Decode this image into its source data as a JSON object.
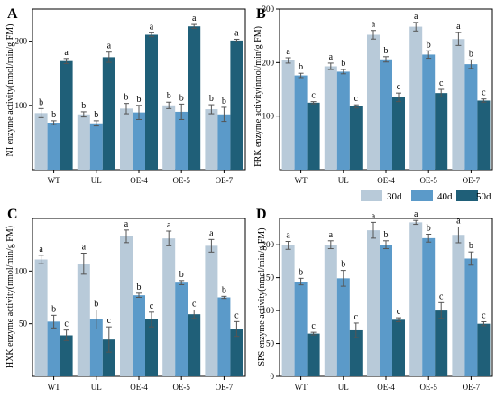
{
  "colors": {
    "30d": "#b8cad9",
    "40d": "#5b9ac9",
    "50d": "#1f5f78",
    "axis": "#000000"
  },
  "legend": {
    "placement": "between-top-right-and-bottom-right-panels",
    "items": [
      {
        "label": "30d",
        "color_key": "30d"
      },
      {
        "label": "40d",
        "color_key": "40d"
      },
      {
        "label": "50d",
        "color_key": "50d"
      }
    ]
  },
  "chart_data": [
    {
      "panel": "A",
      "type": "bar",
      "ylabel": "NI enzyme activity(nmol/min/g FM)",
      "categories": [
        "WT",
        "UL",
        "OE-4",
        "OE-5",
        "OE-7"
      ],
      "ylim": [
        0,
        250
      ],
      "yticks": [
        100,
        200
      ],
      "ytick_labels": [
        "100",
        "200"
      ],
      "series": [
        {
          "name": "30d",
          "values": [
            88,
            86,
            95,
            100,
            94
          ],
          "errors": [
            7,
            4,
            8,
            5,
            7
          ],
          "letters": [
            "b",
            "b",
            "b",
            "b",
            "b"
          ]
        },
        {
          "name": "40d",
          "values": [
            73,
            72,
            89,
            90,
            86
          ],
          "errors": [
            3,
            4,
            11,
            12,
            11
          ],
          "letters": [
            "b",
            "b",
            "b",
            "b",
            "b"
          ]
        },
        {
          "name": "50d",
          "values": [
            169,
            175,
            210,
            223,
            201
          ],
          "errors": [
            4,
            8,
            3,
            3,
            2
          ],
          "letters": [
            "a",
            "a",
            "a",
            "a",
            "a"
          ]
        }
      ]
    },
    {
      "panel": "B",
      "type": "bar",
      "ylabel": "FRK enzyme activity(nmol/min/g FM)",
      "categories": [
        "WT",
        "UL",
        "OE-4",
        "OE-5",
        "OE-7"
      ],
      "ylim": [
        0,
        300
      ],
      "yticks": [
        100,
        200,
        300
      ],
      "ytick_labels": [
        "100",
        "200",
        "300"
      ],
      "series": [
        {
          "name": "30d",
          "values": [
            204,
            193,
            252,
            267,
            244
          ],
          "errors": [
            5,
            6,
            8,
            8,
            12
          ],
          "letters": [
            "a",
            "a",
            "a",
            "a",
            "a"
          ]
        },
        {
          "name": "40d",
          "values": [
            176,
            183,
            206,
            215,
            197
          ],
          "errors": [
            4,
            4,
            5,
            7,
            8
          ],
          "letters": [
            "b",
            "b",
            "b",
            "b",
            "b"
          ]
        },
        {
          "name": "50d",
          "values": [
            125,
            118,
            135,
            143,
            129
          ],
          "errors": [
            2,
            3,
            8,
            7,
            3
          ],
          "letters": [
            "c",
            "c",
            "c",
            "c",
            "c"
          ]
        }
      ]
    },
    {
      "panel": "C",
      "type": "bar",
      "ylabel": "HXK enzyme activity(nmol/min/g FM)",
      "categories": [
        "WT",
        "UL",
        "OE-4",
        "OE-5",
        "OE-7"
      ],
      "ylim": [
        0,
        150
      ],
      "yticks": [
        50,
        100
      ],
      "ytick_labels": [
        "50",
        "100"
      ],
      "series": [
        {
          "name": "30d",
          "values": [
            111,
            107,
            133,
            131,
            124
          ],
          "errors": [
            4,
            10,
            6,
            7,
            6
          ],
          "letters": [
            "a",
            "a",
            "a",
            "a",
            "a"
          ]
        },
        {
          "name": "40d",
          "values": [
            52,
            54,
            77,
            89,
            75
          ],
          "errors": [
            6,
            9,
            2,
            2,
            1
          ],
          "letters": [
            "b",
            "b",
            "b",
            "b",
            "b"
          ]
        },
        {
          "name": "50d",
          "values": [
            39,
            35,
            54,
            59,
            45
          ],
          "errors": [
            5,
            12,
            7,
            4,
            7
          ],
          "letters": [
            "c",
            "c",
            "c",
            "c",
            "c"
          ]
        }
      ]
    },
    {
      "panel": "D",
      "type": "bar",
      "ylabel": "SPS enzyme activity(nmol/min/g FM)",
      "categories": [
        "WT",
        "UL",
        "OE-4",
        "OE-5",
        "OE-7"
      ],
      "ylim": [
        0,
        240
      ],
      "yticks": [
        0,
        50,
        100,
        150,
        200
      ],
      "ytick_labels": [
        "0",
        "50",
        "100",
        "150",
        "200"
      ],
      "series": [
        {
          "name": "30d",
          "values": [
            199,
            200,
            222,
            234,
            215
          ],
          "errors": [
            6,
            6,
            12,
            3,
            12
          ],
          "letters": [
            "a",
            "a",
            "a",
            "a",
            "a"
          ]
        },
        {
          "name": "40d",
          "values": [
            144,
            149,
            200,
            210,
            179
          ],
          "errors": [
            5,
            12,
            6,
            6,
            10
          ],
          "letters": [
            "b",
            "b",
            "b",
            "b",
            "b"
          ]
        },
        {
          "name": "50d",
          "values": [
            65,
            70,
            86,
            100,
            80
          ],
          "errors": [
            2,
            11,
            3,
            12,
            3
          ],
          "letters": [
            "c",
            "c",
            "c",
            "c",
            "c"
          ]
        }
      ]
    }
  ]
}
